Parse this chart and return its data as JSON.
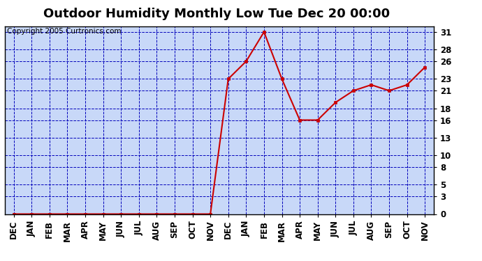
{
  "title": "Outdoor Humidity Monthly Low Tue Dec 20 00:00",
  "copyright": "Copyright 2005 Curtronics.com",
  "x_labels": [
    "DEC",
    "JAN",
    "FEB",
    "MAR",
    "APR",
    "MAY",
    "JUN",
    "JUL",
    "AUG",
    "SEP",
    "OCT",
    "NOV",
    "DEC",
    "JAN",
    "FEB",
    "MAR",
    "APR",
    "MAY",
    "JUN",
    "JUL",
    "AUG",
    "SEP",
    "OCT",
    "NOV"
  ],
  "y_values": [
    0,
    0,
    0,
    0,
    0,
    0,
    0,
    0,
    0,
    0,
    0,
    0,
    23,
    26,
    31,
    23,
    16,
    16,
    19,
    21,
    22,
    21,
    22,
    25
  ],
  "ylim": [
    0,
    32
  ],
  "ytick_positions": [
    0,
    3,
    5,
    8,
    10,
    13,
    16,
    18,
    21,
    23,
    26,
    28,
    31
  ],
  "line_color": "#cc0000",
  "marker": "s",
  "marker_size": 3,
  "bg_color": "#c8d8f8",
  "fig_bg_color": "#ffffff",
  "grid_color": "#0000bb",
  "title_fontsize": 13,
  "copyright_fontsize": 7.5,
  "tick_fontsize": 8.5
}
